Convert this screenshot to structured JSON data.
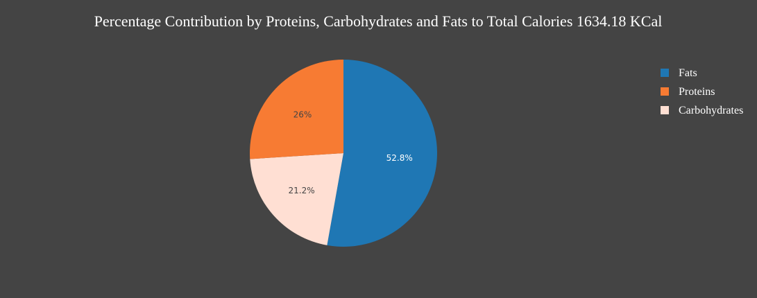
{
  "chart_data": {
    "type": "pie",
    "title": "Percentage Contribution by Proteins, Carbohydrates and Fats to Total Calories 1634.18 KCal",
    "slices": [
      {
        "label": "Fats",
        "value": 52.8,
        "text": "52.8%",
        "color": "#1f77b4",
        "text_color": "#ffffff"
      },
      {
        "label": "Carbohydrates",
        "value": 21.2,
        "text": "21.2%",
        "color": "#ffdfd3",
        "text_color": "#444444"
      },
      {
        "label": "Proteins",
        "value": 26.0,
        "text": "26%",
        "color": "#f77b33",
        "text_color": "#444444"
      }
    ],
    "legend": [
      {
        "label": "Fats",
        "color": "#1f77b4"
      },
      {
        "label": "Proteins",
        "color": "#f77b33"
      },
      {
        "label": "Carbohydrates",
        "color": "#ffdfd3"
      }
    ],
    "legend_position": "top-right",
    "direction": "clockwise",
    "start": "top"
  },
  "colors": {
    "background": "#444444"
  }
}
